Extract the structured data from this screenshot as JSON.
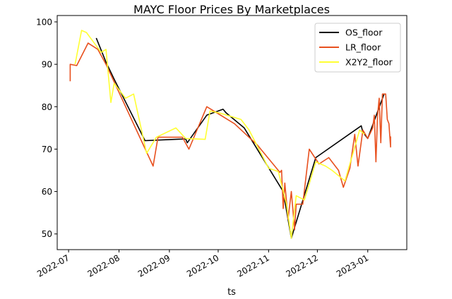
{
  "chart_data": {
    "type": "line",
    "title": "MAYC Floor Prices By Marketplaces",
    "xlabel": "ts",
    "ylabel": "",
    "xlim": [
      "2022-06-24",
      "2023-01-25"
    ],
    "ylim": [
      46.3,
      101.5
    ],
    "x_ticks": [
      "2022-07",
      "2022-08",
      "2022-09",
      "2022-10",
      "2022-11",
      "2022-12",
      "2023-01"
    ],
    "y_ticks": [
      50,
      60,
      70,
      80,
      90,
      100
    ],
    "grid": false,
    "legend_position": "top-right",
    "series": [
      {
        "name": "OS_floor",
        "color": "#000000",
        "points": [
          [
            "2022-07-18",
            96.2
          ],
          [
            "2022-07-24",
            90.5
          ],
          [
            "2022-07-29",
            86.5
          ],
          [
            "2022-08-17",
            72
          ],
          [
            "2022-09-11",
            72.4
          ],
          [
            "2022-09-12",
            71.5
          ],
          [
            "2022-09-24",
            78
          ],
          [
            "2022-10-04",
            79.4
          ],
          [
            "2022-10-06",
            78.5
          ],
          [
            "2022-10-17",
            75
          ],
          [
            "2022-11-10",
            60
          ],
          [
            "2022-11-15",
            49
          ],
          [
            "2022-11-30",
            68
          ],
          [
            "2022-12-28",
            75.5
          ],
          [
            "2022-12-29",
            74
          ],
          [
            "2023-01-01",
            72.5
          ],
          [
            "2023-01-11",
            83
          ]
        ]
      },
      {
        "name": "LR_floor",
        "color": "#e8501e",
        "points": [
          [
            "2022-07-02",
            86
          ],
          [
            "2022-07-02",
            90
          ],
          [
            "2022-07-06",
            89.7
          ],
          [
            "2022-07-13",
            95
          ],
          [
            "2022-07-19",
            93.5
          ],
          [
            "2022-07-24",
            90
          ],
          [
            "2022-08-22",
            66
          ],
          [
            "2022-08-25",
            72.8
          ],
          [
            "2022-09-09",
            72.8
          ],
          [
            "2022-09-13",
            70
          ],
          [
            "2022-09-24",
            80
          ],
          [
            "2022-10-11",
            76
          ],
          [
            "2022-10-25",
            71
          ],
          [
            "2022-11-08",
            64.5
          ],
          [
            "2022-11-09",
            65
          ],
          [
            "2022-11-10",
            56
          ],
          [
            "2022-11-11",
            62
          ],
          [
            "2022-11-13",
            53.5
          ],
          [
            "2022-11-15",
            60
          ],
          [
            "2022-11-17",
            51
          ],
          [
            "2022-11-18",
            57
          ],
          [
            "2022-11-22",
            57
          ],
          [
            "2022-11-26",
            70
          ],
          [
            "2022-12-02",
            66.5
          ],
          [
            "2022-12-08",
            68
          ],
          [
            "2022-12-14",
            65
          ],
          [
            "2022-12-17",
            61
          ],
          [
            "2022-12-21",
            65.5
          ],
          [
            "2022-12-24",
            73.5
          ],
          [
            "2022-12-26",
            66
          ],
          [
            "2022-12-29",
            74.5
          ],
          [
            "2023-01-01",
            72.5
          ],
          [
            "2023-01-04",
            75
          ],
          [
            "2023-01-05",
            78
          ],
          [
            "2023-01-06",
            67
          ],
          [
            "2023-01-07",
            78
          ],
          [
            "2023-01-08",
            82
          ],
          [
            "2023-01-09",
            71.5
          ],
          [
            "2023-01-10",
            83
          ],
          [
            "2023-01-12",
            83
          ],
          [
            "2023-01-13",
            77
          ],
          [
            "2023-01-14",
            76
          ],
          [
            "2023-01-15",
            70.5
          ],
          [
            "2023-01-15",
            73
          ]
        ]
      },
      {
        "name": "X2Y2_floor",
        "color": "#ffff33",
        "points": [
          [
            "2022-07-05",
            90
          ],
          [
            "2022-07-09",
            98
          ],
          [
            "2022-07-12",
            97.5
          ],
          [
            "2022-07-21",
            92.8
          ],
          [
            "2022-07-24",
            93.5
          ],
          [
            "2022-07-27",
            81
          ],
          [
            "2022-07-29",
            85.5
          ],
          [
            "2022-08-05",
            82
          ],
          [
            "2022-08-10",
            83
          ],
          [
            "2022-08-14",
            76
          ],
          [
            "2022-08-18",
            69
          ],
          [
            "2022-08-24",
            72.8
          ],
          [
            "2022-09-05",
            75
          ],
          [
            "2022-09-11",
            72.5
          ],
          [
            "2022-09-23",
            72.3
          ],
          [
            "2022-09-26",
            79
          ],
          [
            "2022-10-02",
            78.5
          ],
          [
            "2022-10-15",
            77
          ],
          [
            "2022-10-20",
            74.5
          ],
          [
            "2022-11-01",
            65.5
          ],
          [
            "2022-11-07",
            64.7
          ],
          [
            "2022-11-12",
            57
          ],
          [
            "2022-11-15",
            49
          ],
          [
            "2022-11-18",
            59
          ],
          [
            "2022-11-23",
            58
          ],
          [
            "2022-11-30",
            67
          ],
          [
            "2022-12-06",
            66
          ],
          [
            "2022-12-10",
            65
          ],
          [
            "2022-12-18",
            62.5
          ],
          [
            "2022-12-27",
            74.5
          ],
          [
            "2022-12-30",
            73.5
          ]
        ]
      }
    ]
  }
}
